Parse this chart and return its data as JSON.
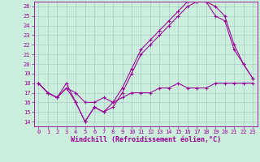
{
  "line1": {
    "x": [
      0,
      1,
      2,
      3,
      4,
      5,
      6,
      7,
      8,
      9,
      10,
      11,
      12,
      13,
      14,
      15,
      16,
      17,
      18,
      19,
      20,
      21,
      22,
      23
    ],
    "y": [
      18,
      17,
      16.5,
      17.5,
      17,
      16,
      16,
      16.5,
      16,
      16.5,
      17,
      17,
      17,
      17.5,
      17.5,
      18,
      17.5,
      17.5,
      17.5,
      18,
      18,
      18,
      18,
      18
    ]
  },
  "line2": {
    "x": [
      0,
      1,
      2,
      3,
      4,
      5,
      6,
      7,
      8,
      9,
      10,
      11,
      12,
      13,
      14,
      15,
      16,
      17,
      18,
      19,
      20,
      21,
      22,
      23
    ],
    "y": [
      18,
      17,
      16.5,
      18,
      16,
      14,
      15.5,
      15,
      15.5,
      17,
      19,
      21,
      22,
      23,
      24,
      25,
      26,
      26.5,
      26.5,
      26,
      25,
      22,
      20,
      18.5
    ]
  },
  "line3": {
    "x": [
      0,
      1,
      2,
      3,
      4,
      5,
      6,
      7,
      8,
      9,
      10,
      11,
      12,
      13,
      14,
      15,
      16,
      17,
      18,
      19,
      20,
      21,
      22,
      23
    ],
    "y": [
      18,
      17,
      16.5,
      17.5,
      16,
      14,
      15.5,
      15,
      16,
      17.5,
      19.5,
      21.5,
      22.5,
      23.5,
      24.5,
      25.5,
      26.5,
      26.5,
      26.5,
      25,
      24.5,
      21.5,
      20,
      18.5
    ]
  },
  "color": "#990099",
  "bg_color": "#cceedd",
  "grid_color": "#aacccc",
  "xlabel": "Windchill (Refroidissement éolien,°C)",
  "xlim": [
    -0.5,
    23.5
  ],
  "ylim": [
    13.5,
    26.5
  ],
  "xticks": [
    0,
    1,
    2,
    3,
    4,
    5,
    6,
    7,
    8,
    9,
    10,
    11,
    12,
    13,
    14,
    15,
    16,
    17,
    18,
    19,
    20,
    21,
    22,
    23
  ],
  "yticks": [
    14,
    15,
    16,
    17,
    18,
    19,
    20,
    21,
    22,
    23,
    24,
    25,
    26
  ],
  "tick_fontsize": 5,
  "xlabel_fontsize": 6,
  "marker": "+",
  "markersize": 3.5,
  "linewidth": 0.75
}
